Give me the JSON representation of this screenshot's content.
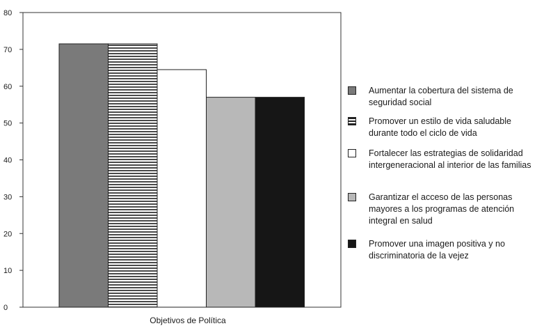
{
  "chart_data": {
    "type": "bar",
    "xlabel": "Objetivos de Política",
    "ylim": [
      0,
      80
    ],
    "yticks": [
      0,
      10,
      20,
      30,
      40,
      50,
      60,
      70,
      80
    ],
    "grid": false,
    "legend_position": "right",
    "series": [
      {
        "name": "Aumentar la cobertura del sistema de seguridad social",
        "value": 71.5,
        "color": "#7a7a7a",
        "pattern": "dark-gray"
      },
      {
        "name": "Promover un estilo de vida saludable durante todo el ciclo de vida",
        "value": 71.5,
        "color": "#555555",
        "pattern": "horizontal-stripes"
      },
      {
        "name": "Fortalecer las estrategias de solidaridad intergeneracional al interior de las familias",
        "value": 64.5,
        "color": "#ffffff",
        "pattern": "white"
      },
      {
        "name": "Garantizar el acceso de las personas mayores a los programas de atención integral en salud",
        "value": 57,
        "color": "#b8b8b8",
        "pattern": "light-gray"
      },
      {
        "name": "Promover una imagen positiva y no discriminatoria de la vejez",
        "value": 57,
        "color": "#161616",
        "pattern": "black"
      }
    ]
  }
}
